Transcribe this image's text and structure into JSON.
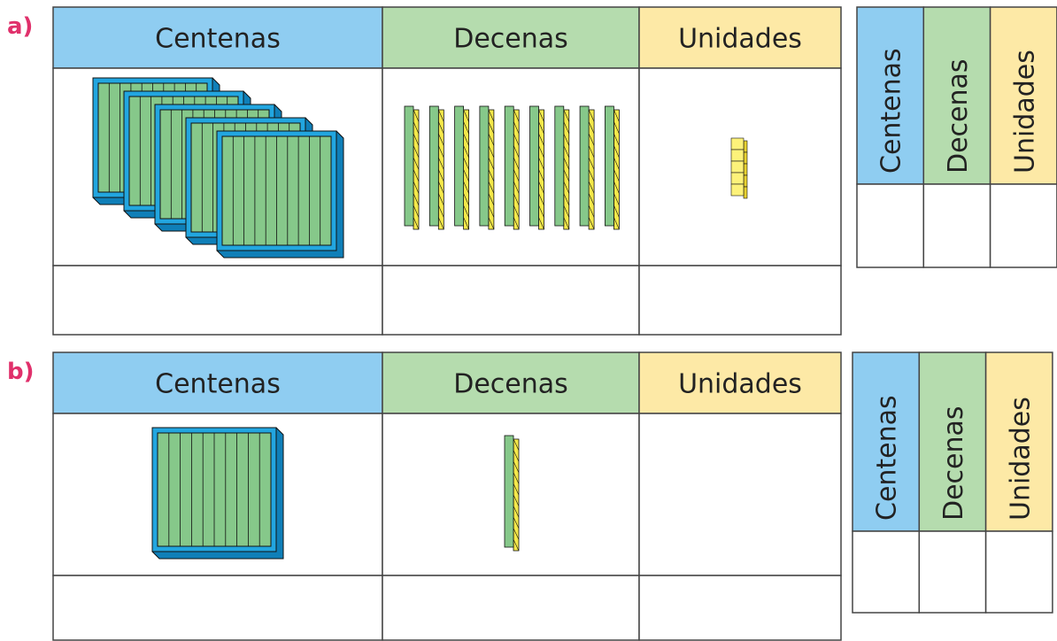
{
  "exercises": [
    {
      "label": "a)",
      "headers": [
        "Centenas",
        "Decenas",
        "Unidades"
      ],
      "side_headers": [
        "Centenas",
        "Decenas",
        "Unidades"
      ],
      "blocks": {
        "centenas": 5,
        "decenas": 9,
        "unidades": 5
      }
    },
    {
      "label": "b)",
      "headers": [
        "Centenas",
        "Decenas",
        "Unidades"
      ],
      "side_headers": [
        "Centenas",
        "Decenas",
        "Unidades"
      ],
      "blocks": {
        "centenas": 1,
        "decenas": 1,
        "unidades": 0
      }
    }
  ]
}
